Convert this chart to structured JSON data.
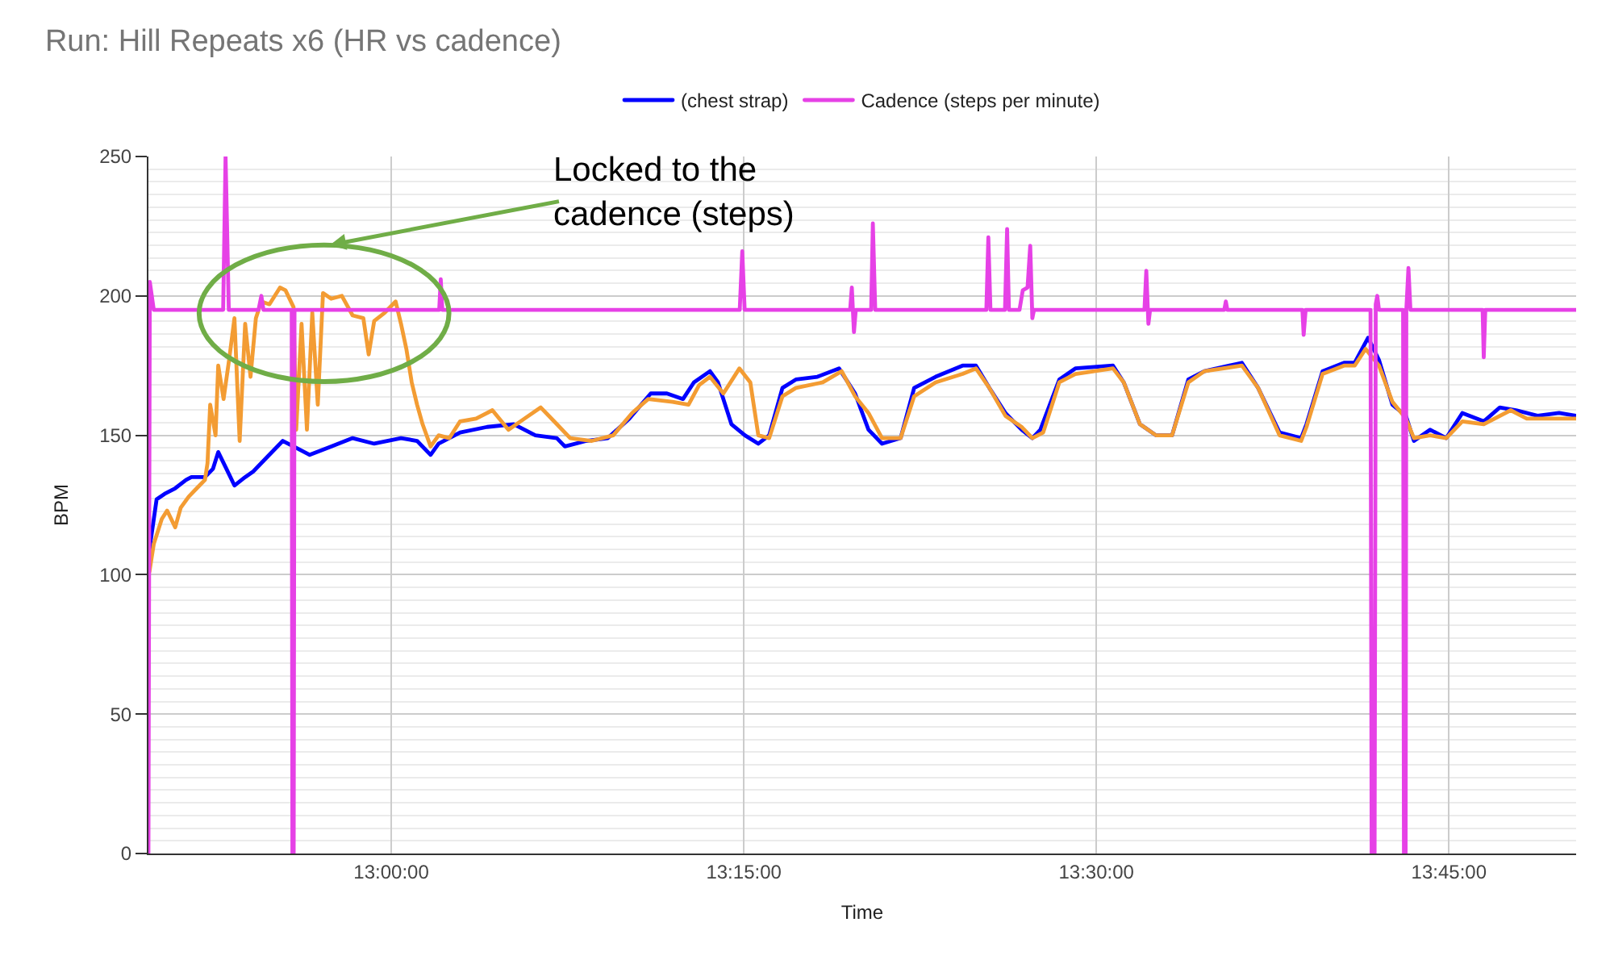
{
  "chart_data": {
    "type": "line",
    "title": "Run: Hill Repeats x6 (HR vs cadence)",
    "xlabel": "Time",
    "ylabel": "BPM",
    "xlim": [
      12.8278,
      13.8402
    ],
    "xticks": [
      {
        "value": 13,
        "label": "13:00:00"
      },
      {
        "value": 13.25,
        "label": "13:15:00"
      },
      {
        "value": 13.5,
        "label": "13:30:00"
      },
      {
        "value": 13.75,
        "label": "13:45:00"
      }
    ],
    "ylim": [
      0,
      250
    ],
    "yticks": [
      0,
      50,
      100,
      150,
      200,
      250
    ],
    "grid": true,
    "legend": "top",
    "line_style": "solid",
    "annotations": [
      "Locked to the\ncadence (steps)"
    ],
    "series": [
      {
        "name": "(chest strap)",
        "color": "#0000ff",
        "x": [
          12.8285,
          12.8336,
          12.8393,
          12.8468,
          12.8545,
          12.8583,
          12.8679,
          12.8736,
          12.8773,
          12.8831,
          12.8888,
          12.8964,
          12.9021,
          12.9116,
          12.9231,
          12.9307,
          12.9422,
          12.9574,
          12.9726,
          12.9879,
          13.0069,
          13.0183,
          13.0279,
          13.0336,
          13.0488,
          13.0679,
          13.0869,
          13.1022,
          13.1174,
          13.1231,
          13.1383,
          13.1536,
          13.1688,
          13.184,
          13.1955,
          13.2069,
          13.2146,
          13.226,
          13.2317,
          13.2412,
          13.2508,
          13.2603,
          13.268,
          13.2774,
          13.2869,
          13.3022,
          13.3175,
          13.3289,
          13.3384,
          13.348,
          13.3612,
          13.3708,
          13.386,
          13.4051,
          13.4146,
          13.4241,
          13.4355,
          13.447,
          13.4546,
          13.4603,
          13.4737,
          13.4851,
          13.5118,
          13.5194,
          13.5309,
          13.5423,
          13.5537,
          13.5652,
          13.5766,
          13.6032,
          13.6147,
          13.6299,
          13.6452,
          13.649,
          13.6604,
          13.6756,
          13.6832,
          13.6927,
          13.7004,
          13.7099,
          13.7195,
          13.7252,
          13.7366,
          13.7481,
          13.7595,
          13.7747,
          13.7861,
          13.7976,
          13.8128,
          13.8281,
          13.8402
        ],
        "values": [
          109,
          127,
          129,
          131,
          134,
          135,
          135,
          138,
          144,
          138,
          132,
          135,
          137,
          142,
          148,
          146,
          143,
          146,
          149,
          147,
          149,
          148,
          143,
          147,
          151,
          153,
          154,
          150,
          149,
          146,
          148,
          149,
          156,
          165,
          165,
          163,
          169,
          173,
          169,
          154,
          150,
          147,
          150,
          167,
          170,
          171,
          174,
          165,
          152,
          147,
          149,
          167,
          171,
          175,
          175,
          167,
          158,
          152,
          149,
          152,
          170,
          174,
          175,
          169,
          154,
          150,
          150,
          170,
          173,
          176,
          167,
          151,
          149,
          154,
          173,
          176,
          176,
          185,
          177,
          161,
          157,
          148,
          152,
          149,
          158,
          155,
          160,
          159,
          157,
          158,
          157
        ]
      },
      {
        "color": "#f39c33",
        "x": [
          12.8285,
          12.8316,
          12.8373,
          12.8411,
          12.8468,
          12.8507,
          12.8564,
          12.8621,
          12.8679,
          12.8697,
          12.8716,
          12.8754,
          12.8773,
          12.8811,
          12.885,
          12.8888,
          12.8925,
          12.8964,
          12.9002,
          12.904,
          12.9079,
          12.9136,
          12.9211,
          12.925,
          12.9307,
          12.9326,
          12.9364,
          12.9402,
          12.944,
          12.9479,
          12.9516,
          12.9574,
          12.965,
          12.9726,
          12.9802,
          12.984,
          12.9879,
          12.9954,
          13.0031,
          13.0069,
          13.0107,
          13.0145,
          13.0183,
          13.0222,
          13.0279,
          13.0336,
          13.0412,
          13.0488,
          13.0602,
          13.0717,
          13.0831,
          13.0945,
          13.106,
          13.1174,
          13.1269,
          13.1422,
          13.1574,
          13.1708,
          13.1822,
          13.1994,
          13.2108,
          13.2183,
          13.226,
          13.2355,
          13.2469,
          13.2546,
          13.2603,
          13.268,
          13.2774,
          13.2869,
          13.306,
          13.3194,
          13.3289,
          13.3384,
          13.348,
          13.3612,
          13.3708,
          13.386,
          13.4051,
          13.4146,
          13.4241,
          13.4355,
          13.447,
          13.4546,
          13.4623,
          13.4737,
          13.4851,
          13.5118,
          13.5194,
          13.5309,
          13.5423,
          13.5537,
          13.5652,
          13.5766,
          13.6032,
          13.6147,
          13.6299,
          13.6452,
          13.649,
          13.6604,
          13.6756,
          13.6832,
          13.6909,
          13.7004,
          13.7099,
          13.7195,
          13.7252,
          13.7366,
          13.7481,
          13.7595,
          13.7747,
          13.7938,
          13.8052,
          13.8204,
          13.8402
        ],
        "values": [
          101,
          111,
          120,
          123,
          117,
          124,
          128,
          131,
          134,
          140,
          161,
          150,
          175,
          163,
          177,
          192,
          148,
          190,
          171,
          192,
          198,
          197,
          203,
          202,
          196,
          152,
          190,
          152,
          194,
          161,
          201,
          199,
          200,
          193,
          192,
          179,
          191,
          194,
          198,
          190,
          181,
          169,
          161,
          154,
          146,
          150,
          149,
          155,
          156,
          159,
          152,
          156,
          160,
          154,
          149,
          148,
          150,
          158,
          163,
          162,
          161,
          168,
          171,
          165,
          174,
          169,
          150,
          149,
          164,
          167,
          169,
          173,
          164,
          158,
          149,
          149,
          164,
          169,
          172,
          174,
          167,
          157,
          153,
          149,
          151,
          169,
          172,
          174,
          169,
          154,
          150,
          150,
          169,
          173,
          175,
          167,
          150,
          148,
          153,
          172,
          175,
          175,
          181,
          175,
          162,
          156,
          149,
          150,
          149,
          155,
          154,
          159,
          156,
          156,
          156
        ]
      },
      {
        "name": "Cadence (steps per minute)",
        "color": "#e641e6",
        "x": [
          12.8278,
          12.8288,
          12.8316,
          12.8808,
          12.8825,
          12.8848,
          12.9059,
          12.9079,
          12.9094,
          12.9294,
          12.9299,
          12.9308,
          12.9314,
          13.034,
          13.0351,
          13.0362,
          13.2471,
          13.2489,
          13.2506,
          13.3254,
          13.3266,
          13.3281,
          13.3294,
          13.3403,
          13.3415,
          13.3432,
          13.422,
          13.4234,
          13.4249,
          13.4352,
          13.4367,
          13.438,
          13.4455,
          13.4478,
          13.4512,
          13.4531,
          13.4546,
          13.4558,
          13.5341,
          13.5354,
          13.5369,
          13.5381,
          13.5907,
          13.5918,
          13.5929,
          13.6461,
          13.647,
          13.6484,
          13.6944,
          13.6952,
          13.6973,
          13.6981,
          13.6992,
          13.7004,
          13.7175,
          13.7181,
          13.7193,
          13.7198,
          13.7213,
          13.7227,
          13.7739,
          13.7747,
          13.7758,
          13.8402
        ],
        "values": [
          0,
          205,
          195,
          195,
          250,
          195,
          195,
          200,
          195,
          195,
          0,
          0,
          195,
          195,
          206,
          195,
          195,
          216,
          195,
          195,
          203,
          187,
          195,
          195,
          226,
          195,
          195,
          221,
          195,
          195,
          224,
          195,
          195,
          202,
          203,
          218,
          192,
          195,
          195,
          209,
          190,
          195,
          195,
          198,
          195,
          195,
          186,
          195,
          195,
          0,
          0,
          197,
          200,
          195,
          195,
          0,
          0,
          195,
          210,
          195,
          195,
          178,
          195,
          195
        ]
      }
    ]
  }
}
